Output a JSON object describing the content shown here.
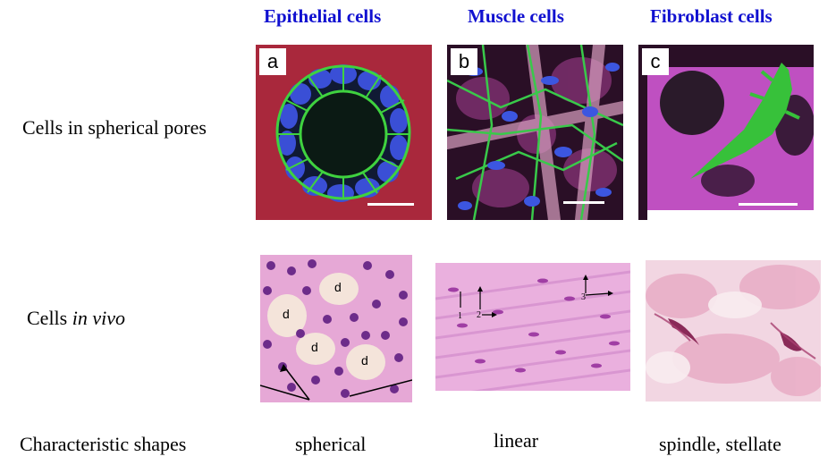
{
  "columns": {
    "epithelial": "Epithelial cells",
    "muscle": "Muscle cells",
    "fibroblast": "Fibroblast cells"
  },
  "rows": {
    "pores_label": "Cells in spherical pores",
    "invivo_prefix": "Cells ",
    "invivo_italic": "in vivo",
    "shapes_label": "Characteristic shapes"
  },
  "panel_letters": {
    "a": "a",
    "b": "b",
    "c": "c"
  },
  "epithelial_markers": [
    "d",
    "d",
    "d",
    "d"
  ],
  "muscle_markers": [
    "1",
    "2",
    "3"
  ],
  "shapes": {
    "epithelial": "spherical",
    "muscle": "linear",
    "fibroblast": "spindle, stellate"
  },
  "colors": {
    "title_blue": "#1010d0",
    "membrane_green": "#3fd23f",
    "nucleus_blue": "#3a4fd6",
    "matrix_magenta": "#b53fb8",
    "he_pink": "#e39ad0",
    "he_purple": "#6d2c8a"
  }
}
